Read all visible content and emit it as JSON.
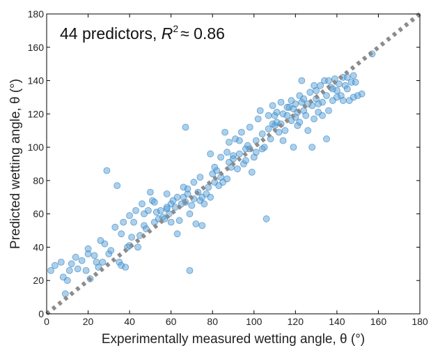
{
  "chart_data": {
    "type": "scatter",
    "annotation": {
      "prefix": "44 predictors, ",
      "italic": "R",
      "superscript": "2",
      "suffix": "≈ 0.86"
    },
    "xlabel": "Experimentally measured wetting angle, θ (°)",
    "ylabel": "Predicted wetting angle, θ (°)",
    "xlim": [
      0,
      180
    ],
    "ylim": [
      0,
      180
    ],
    "xticks": [
      0,
      20,
      40,
      60,
      80,
      100,
      120,
      140,
      160,
      180
    ],
    "yticks": [
      0,
      20,
      40,
      60,
      80,
      100,
      120,
      140,
      160,
      180
    ],
    "grid": false,
    "reference_line": {
      "style": "dotted",
      "from": [
        0,
        0
      ],
      "to": [
        180,
        180
      ],
      "color": "#8c8c8c"
    },
    "point_color": "#5aa2d8",
    "point_edge_color": "#2f7fc0",
    "series": [
      {
        "points": [
          [
            2,
            26
          ],
          [
            4,
            29
          ],
          [
            7,
            31
          ],
          [
            9,
            12
          ],
          [
            10,
            20
          ],
          [
            11,
            26
          ],
          [
            14,
            34
          ],
          [
            15,
            27
          ],
          [
            17,
            32
          ],
          [
            19,
            26
          ],
          [
            20,
            39
          ],
          [
            20,
            36
          ],
          [
            21,
            21
          ],
          [
            23,
            35
          ],
          [
            24,
            31
          ],
          [
            25,
            28
          ],
          [
            27,
            31
          ],
          [
            28,
            42
          ],
          [
            29,
            86
          ],
          [
            30,
            36
          ],
          [
            33,
            52
          ],
          [
            34,
            77
          ],
          [
            35,
            31
          ],
          [
            36,
            29
          ],
          [
            37,
            55
          ],
          [
            38,
            28
          ],
          [
            39,
            40
          ],
          [
            40,
            41
          ],
          [
            40,
            59
          ],
          [
            41,
            46
          ],
          [
            43,
            62
          ],
          [
            44,
            40
          ],
          [
            45,
            47
          ],
          [
            46,
            66
          ],
          [
            47,
            53
          ],
          [
            48,
            51
          ],
          [
            49,
            62
          ],
          [
            50,
            73
          ],
          [
            51,
            68
          ],
          [
            52,
            55
          ],
          [
            53,
            61
          ],
          [
            54,
            57
          ],
          [
            55,
            62
          ],
          [
            56,
            58
          ],
          [
            57,
            57
          ],
          [
            58,
            63
          ],
          [
            58,
            72
          ],
          [
            59,
            60
          ],
          [
            60,
            55
          ],
          [
            60,
            66
          ],
          [
            61,
            68
          ],
          [
            62,
            64
          ],
          [
            63,
            48
          ],
          [
            64,
            56
          ],
          [
            65,
            66
          ],
          [
            66,
            70
          ],
          [
            67,
            67
          ],
          [
            67,
            112
          ],
          [
            68,
            72
          ],
          [
            68,
            75
          ],
          [
            69,
            26
          ],
          [
            69,
            60
          ],
          [
            70,
            65
          ],
          [
            71,
            69
          ],
          [
            72,
            54
          ],
          [
            73,
            73
          ],
          [
            74,
            68
          ],
          [
            75,
            70
          ],
          [
            75,
            53
          ],
          [
            77,
            72
          ],
          [
            78,
            76
          ],
          [
            79,
            70
          ],
          [
            79,
            96
          ],
          [
            80,
            84
          ],
          [
            81,
            79
          ],
          [
            82,
            86
          ],
          [
            83,
            77
          ],
          [
            84,
            82
          ],
          [
            85,
            79
          ],
          [
            86,
            109
          ],
          [
            87,
            81
          ],
          [
            88,
            91
          ],
          [
            88,
            103
          ],
          [
            89,
            88
          ],
          [
            90,
            95
          ],
          [
            91,
            105
          ],
          [
            92,
            87
          ],
          [
            93,
            96
          ],
          [
            94,
            109
          ],
          [
            95,
            90
          ],
          [
            96,
            99
          ],
          [
            97,
            101
          ],
          [
            98,
            99
          ],
          [
            99,
            85
          ],
          [
            100,
            94
          ],
          [
            101,
            97
          ],
          [
            102,
            117
          ],
          [
            103,
            122
          ],
          [
            104,
            108
          ],
          [
            105,
            100
          ],
          [
            106,
            57
          ],
          [
            107,
            111
          ],
          [
            108,
            105
          ],
          [
            109,
            114
          ],
          [
            110,
            113
          ],
          [
            110,
            119
          ],
          [
            111,
            115
          ],
          [
            112,
            109
          ],
          [
            113,
            114
          ],
          [
            114,
            120
          ],
          [
            114,
            104
          ],
          [
            115,
            110
          ],
          [
            116,
            119
          ],
          [
            117,
            124
          ],
          [
            118,
            116
          ],
          [
            119,
            123
          ],
          [
            119,
            100
          ],
          [
            120,
            126
          ],
          [
            120,
            118
          ],
          [
            121,
            121
          ],
          [
            122,
            115
          ],
          [
            123,
            127
          ],
          [
            123,
            140
          ],
          [
            124,
            122
          ],
          [
            125,
            119
          ],
          [
            126,
            110
          ],
          [
            127,
            133
          ],
          [
            128,
            125
          ],
          [
            128,
            100
          ],
          [
            129,
            117
          ],
          [
            130,
            129
          ],
          [
            130,
            134
          ],
          [
            131,
            121
          ],
          [
            132,
            137
          ],
          [
            133,
            127
          ],
          [
            134,
            140
          ],
          [
            135,
            131
          ],
          [
            135,
            105
          ],
          [
            136,
            122
          ],
          [
            137,
            136
          ],
          [
            138,
            128
          ],
          [
            139,
            141
          ],
          [
            140,
            134
          ],
          [
            141,
            138
          ],
          [
            142,
            131
          ],
          [
            143,
            142
          ],
          [
            144,
            137
          ],
          [
            145,
            142
          ],
          [
            146,
            128
          ],
          [
            147,
            139
          ],
          [
            148,
            143
          ],
          [
            149,
            139
          ],
          [
            150,
            131
          ],
          [
            152,
            132
          ],
          [
            157,
            156
          ],
          [
            8,
            22
          ],
          [
            12,
            30
          ],
          [
            26,
            44
          ],
          [
            31,
            38
          ],
          [
            36,
            48
          ],
          [
            42,
            55
          ],
          [
            47,
            60
          ],
          [
            52,
            67
          ],
          [
            58,
            64
          ],
          [
            63,
            70
          ],
          [
            66,
            76
          ],
          [
            71,
            79
          ],
          [
            74,
            82
          ],
          [
            76,
            66
          ],
          [
            81,
            88
          ],
          [
            84,
            94
          ],
          [
            87,
            97
          ],
          [
            90,
            93
          ],
          [
            93,
            104
          ],
          [
            96,
            92
          ],
          [
            98,
            112
          ],
          [
            101,
            104
          ],
          [
            104,
            99
          ],
          [
            107,
            119
          ],
          [
            109,
            125
          ],
          [
            111,
            121
          ],
          [
            113,
            127
          ],
          [
            116,
            124
          ],
          [
            118,
            128
          ],
          [
            121,
            113
          ],
          [
            122,
            131
          ],
          [
            124,
            129
          ],
          [
            126,
            126
          ],
          [
            129,
            137
          ],
          [
            131,
            126
          ],
          [
            133,
            119
          ],
          [
            136,
            140
          ],
          [
            138,
            135
          ],
          [
            140,
            130
          ],
          [
            143,
            128
          ],
          [
            145,
            135
          ],
          [
            148,
            130
          ]
        ]
      }
    ]
  }
}
